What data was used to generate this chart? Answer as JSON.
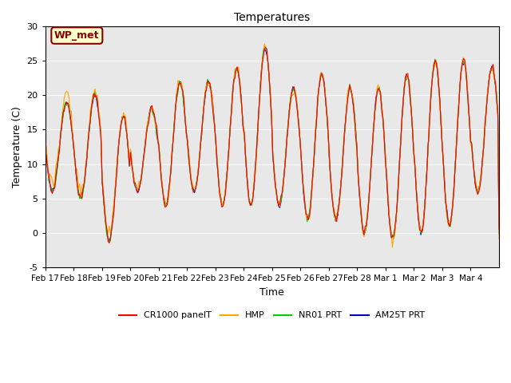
{
  "title": "Temperatures",
  "ylabel": "Temperature (C)",
  "xlabel": "Time",
  "ylim": [
    -5,
    30
  ],
  "bg_color": "#e8e8e8",
  "annotation_text": "WP_met",
  "annotation_bg": "#ffffcc",
  "annotation_fg": "#8b0000",
  "series_colors": {
    "CR1000 panelT": "#ff0000",
    "HMP": "#ffa500",
    "NR01 PRT": "#00cc00",
    "AM25T PRT": "#0000cc"
  },
  "xtick_labels": [
    "Feb 17",
    "Feb 18",
    "Feb 19",
    "Feb 20",
    "Feb 21",
    "Feb 22",
    "Feb 23",
    "Feb 24",
    "Feb 25",
    "Feb 26",
    "Feb 27",
    "Feb 28",
    "Mar 1",
    "Mar 2",
    "Mar 3",
    "Mar 4"
  ],
  "ytick_labels": [
    -5,
    0,
    5,
    10,
    15,
    20,
    25,
    30
  ],
  "daily_min": [
    6,
    5,
    -1,
    6,
    4,
    6,
    4,
    4,
    4,
    2,
    2,
    0,
    -1,
    0,
    1,
    6
  ],
  "daily_max": [
    19,
    20,
    17,
    18,
    22,
    22,
    24,
    27,
    21,
    23,
    21,
    21,
    23,
    25,
    25,
    24
  ]
}
